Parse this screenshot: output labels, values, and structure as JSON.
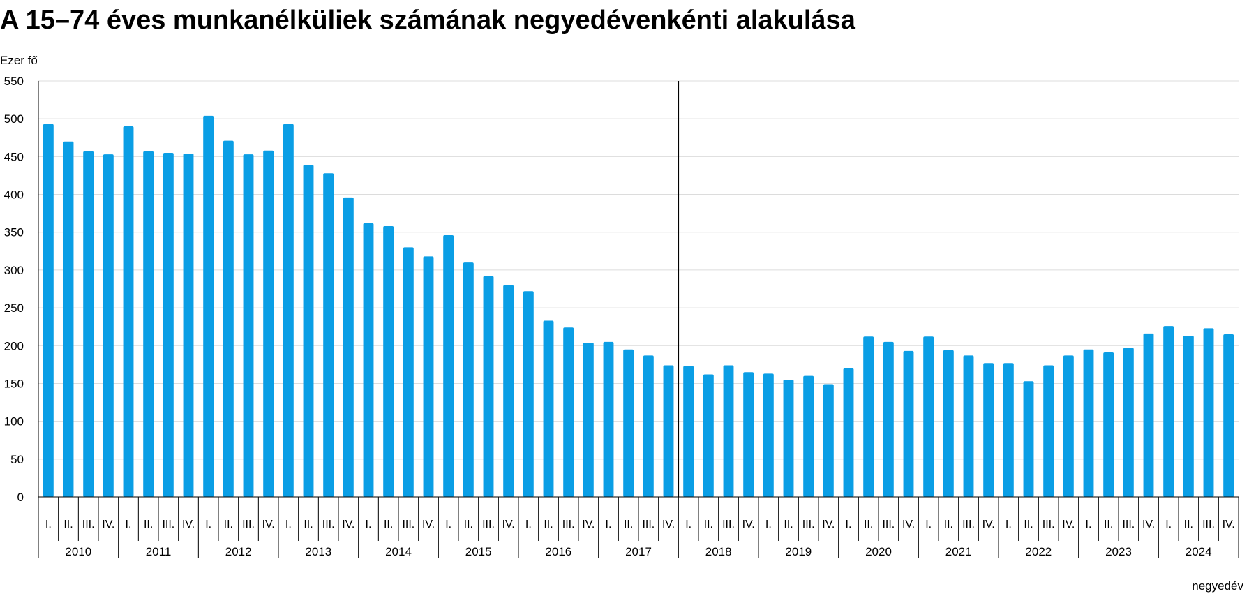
{
  "chart_data": {
    "type": "bar",
    "title": "A 15–74 éves munkanélküliek számának negyedévenkénti alakulása",
    "ylabel": "Ezer fő",
    "xlabel": "negyedév",
    "ylim": [
      0,
      550
    ],
    "yticks": [
      0,
      50,
      100,
      150,
      200,
      250,
      300,
      350,
      400,
      450,
      500,
      550
    ],
    "grid": true,
    "color": "#0a9ee5",
    "quarter_labels": [
      "I.",
      "II.",
      "III.",
      "IV."
    ],
    "years": [
      "2010",
      "2011",
      "2012",
      "2013",
      "2014",
      "2015",
      "2016",
      "2017",
      "2018",
      "2019",
      "2020",
      "2021",
      "2022",
      "2023",
      "2024"
    ],
    "divider_after_year": "2017",
    "values": [
      493,
      470,
      457,
      453,
      490,
      457,
      455,
      454,
      504,
      471,
      453,
      458,
      493,
      439,
      428,
      396,
      362,
      358,
      330,
      318,
      346,
      310,
      292,
      280,
      272,
      233,
      224,
      204,
      205,
      195,
      187,
      174,
      173,
      162,
      174,
      165,
      163,
      155,
      160,
      149,
      170,
      212,
      205,
      193,
      212,
      194,
      187,
      177,
      177,
      153,
      174,
      187,
      195,
      191,
      197,
      216,
      226,
      213,
      223,
      215
    ]
  }
}
